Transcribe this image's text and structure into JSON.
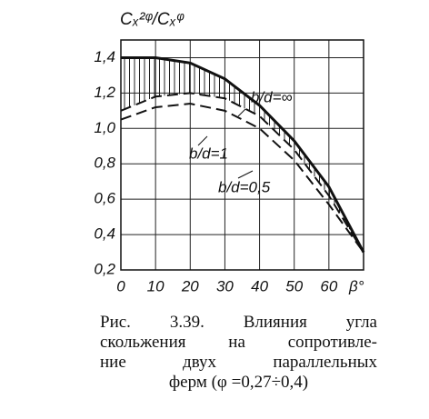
{
  "chart_data": {
    "type": "line",
    "y_label": "Cₓ²ᵠ/Cₓᵠ",
    "x_label": "β°",
    "x": [
      0,
      10,
      20,
      30,
      40,
      50,
      60,
      70
    ],
    "series": [
      {
        "name": "b/d=∞",
        "color": "#111111",
        "dash": "solid",
        "values": [
          1.4,
          1.4,
          1.37,
          1.28,
          1.13,
          0.93,
          0.67,
          0.3
        ]
      },
      {
        "name": "b/d=1",
        "color": "#111111",
        "dash": "dashed",
        "values": [
          1.1,
          1.18,
          1.2,
          1.17,
          1.07,
          0.88,
          0.62,
          0.3
        ]
      },
      {
        "name": "b/d=0,5",
        "color": "#111111",
        "dash": "dashed",
        "values": [
          1.05,
          1.12,
          1.14,
          1.1,
          1.0,
          0.82,
          0.57,
          0.3
        ]
      }
    ],
    "xlim": [
      0,
      70
    ],
    "ylim": [
      0.2,
      1.5
    ],
    "xticks": [
      0,
      10,
      20,
      30,
      40,
      50,
      60
    ],
    "yticks": [
      {
        "value": 0.2,
        "label": "0,2"
      },
      {
        "value": 0.4,
        "label": "0,4"
      },
      {
        "value": 0.6,
        "label": "0,6"
      },
      {
        "value": 0.8,
        "label": "0,8"
      },
      {
        "value": 1.0,
        "label": "1,0"
      },
      {
        "value": 1.2,
        "label": "1,2"
      },
      {
        "value": 1.4,
        "label": "1,4"
      }
    ],
    "grid": true,
    "caption": [
      "Рис. 3.39. Влияния угла",
      "скольжения на сопротивле-",
      "ние двух параллельных",
      "ферм (φ =0,27÷0,4)"
    ]
  }
}
